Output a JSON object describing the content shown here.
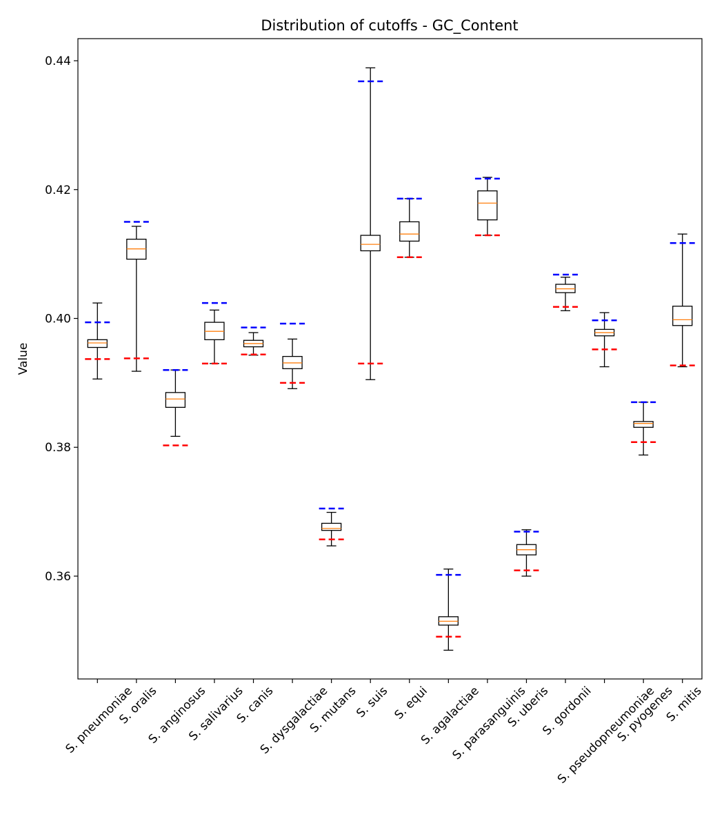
{
  "chart_data": {
    "type": "box",
    "title": "Distribution of cutoffs - GC_Content",
    "xlabel": "",
    "ylabel": "Value",
    "ylim": [
      0.34404,
      0.44343
    ],
    "yticks": [
      0.36,
      0.38,
      0.4,
      0.42,
      0.44
    ],
    "ytick_labels": [
      "0.36",
      "0.38",
      "0.40",
      "0.42",
      "0.44"
    ],
    "grid": false,
    "colors": {
      "box": "#000000",
      "median": "#ff7f0e",
      "upper_cutoff": "#0000ff",
      "lower_cutoff": "#ff0000"
    },
    "categories": [
      "S. pneumoniae",
      "S. oralis",
      "S. anginosus",
      "S. salivarius",
      "S. canis",
      "S. dysgalactiae",
      "S. mutans",
      "S. suis",
      "S. equi",
      "S. agalactiae",
      "S. parasanguinis",
      "S. uberis",
      "S. gordonii",
      "S. pseudopneumoniae",
      "S. pyogenes",
      "S. mitis"
    ],
    "boxes": [
      {
        "whisker_low": 0.3906,
        "q1": 0.3955,
        "median": 0.3962,
        "q3": 0.3967,
        "whisker_high": 0.4024,
        "upper_cutoff": 0.3994,
        "lower_cutoff": 0.3937
      },
      {
        "whisker_low": 0.3918,
        "q1": 0.4092,
        "median": 0.4108,
        "q3": 0.4123,
        "whisker_high": 0.4143,
        "upper_cutoff": 0.415,
        "lower_cutoff": 0.3938
      },
      {
        "whisker_low": 0.3817,
        "q1": 0.3862,
        "median": 0.3875,
        "q3": 0.3885,
        "whisker_high": 0.392,
        "upper_cutoff": 0.392,
        "lower_cutoff": 0.3803
      },
      {
        "whisker_low": 0.393,
        "q1": 0.3967,
        "median": 0.398,
        "q3": 0.3994,
        "whisker_high": 0.4013,
        "upper_cutoff": 0.4024,
        "lower_cutoff": 0.393
      },
      {
        "whisker_low": 0.3943,
        "q1": 0.3956,
        "median": 0.3961,
        "q3": 0.3966,
        "whisker_high": 0.3978,
        "upper_cutoff": 0.3986,
        "lower_cutoff": 0.3944
      },
      {
        "whisker_low": 0.3891,
        "q1": 0.3922,
        "median": 0.3931,
        "q3": 0.3941,
        "whisker_high": 0.3968,
        "upper_cutoff": 0.3992,
        "lower_cutoff": 0.39
      },
      {
        "whisker_low": 0.3647,
        "q1": 0.3671,
        "median": 0.3674,
        "q3": 0.3682,
        "whisker_high": 0.3699,
        "upper_cutoff": 0.3705,
        "lower_cutoff": 0.3657
      },
      {
        "whisker_low": 0.3905,
        "q1": 0.4105,
        "median": 0.4115,
        "q3": 0.4129,
        "whisker_high": 0.4389,
        "upper_cutoff": 0.4368,
        "lower_cutoff": 0.393
      },
      {
        "whisker_low": 0.4095,
        "q1": 0.412,
        "median": 0.4131,
        "q3": 0.415,
        "whisker_high": 0.4186,
        "upper_cutoff": 0.4186,
        "lower_cutoff": 0.4095
      },
      {
        "whisker_low": 0.3485,
        "q1": 0.3524,
        "median": 0.353,
        "q3": 0.3537,
        "whisker_high": 0.3611,
        "upper_cutoff": 0.3602,
        "lower_cutoff": 0.3506
      },
      {
        "whisker_low": 0.4129,
        "q1": 0.4153,
        "median": 0.4179,
        "q3": 0.4198,
        "whisker_high": 0.4219,
        "upper_cutoff": 0.4217,
        "lower_cutoff": 0.4129
      },
      {
        "whisker_low": 0.36,
        "q1": 0.3633,
        "median": 0.3641,
        "q3": 0.3649,
        "whisker_high": 0.3672,
        "upper_cutoff": 0.3669,
        "lower_cutoff": 0.3609
      },
      {
        "whisker_low": 0.4012,
        "q1": 0.404,
        "median": 0.4046,
        "q3": 0.4053,
        "whisker_high": 0.4064,
        "upper_cutoff": 0.4068,
        "lower_cutoff": 0.4018
      },
      {
        "whisker_low": 0.3925,
        "q1": 0.3973,
        "median": 0.3978,
        "q3": 0.3983,
        "whisker_high": 0.4009,
        "upper_cutoff": 0.3997,
        "lower_cutoff": 0.3952
      },
      {
        "whisker_low": 0.3788,
        "q1": 0.3831,
        "median": 0.3837,
        "q3": 0.384,
        "whisker_high": 0.387,
        "upper_cutoff": 0.387,
        "lower_cutoff": 0.3808
      },
      {
        "whisker_low": 0.3925,
        "q1": 0.3989,
        "median": 0.3998,
        "q3": 0.4019,
        "whisker_high": 0.4131,
        "upper_cutoff": 0.4117,
        "lower_cutoff": 0.3927
      }
    ]
  }
}
